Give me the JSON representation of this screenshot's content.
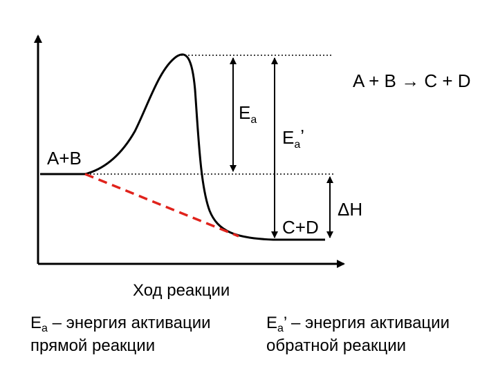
{
  "reaction": {
    "equation": "A + B → C + D"
  },
  "labels": {
    "reactants": "A+B",
    "products": "C+D",
    "ea_forward_main": "E",
    "ea_forward_sub": "a",
    "ea_reverse_main": "E",
    "ea_reverse_sub": "a",
    "ea_reverse_prime": "’",
    "delta_h": "ΔH",
    "x_axis": "Ход реакции"
  },
  "legend": {
    "forward": {
      "symbol_main": "E",
      "symbol_sub": "a",
      "line1_rest": " – энергия активации",
      "line2": "прямой реакции"
    },
    "reverse": {
      "symbol_main": "E",
      "symbol_sub": "a",
      "symbol_prime": "’",
      "line1_rest": " – энергия активации",
      "line2": "обратной реакции"
    }
  },
  "colors": {
    "curve": "#000000",
    "catalyzed_path": "#e0231c",
    "guides": "#000000"
  }
}
